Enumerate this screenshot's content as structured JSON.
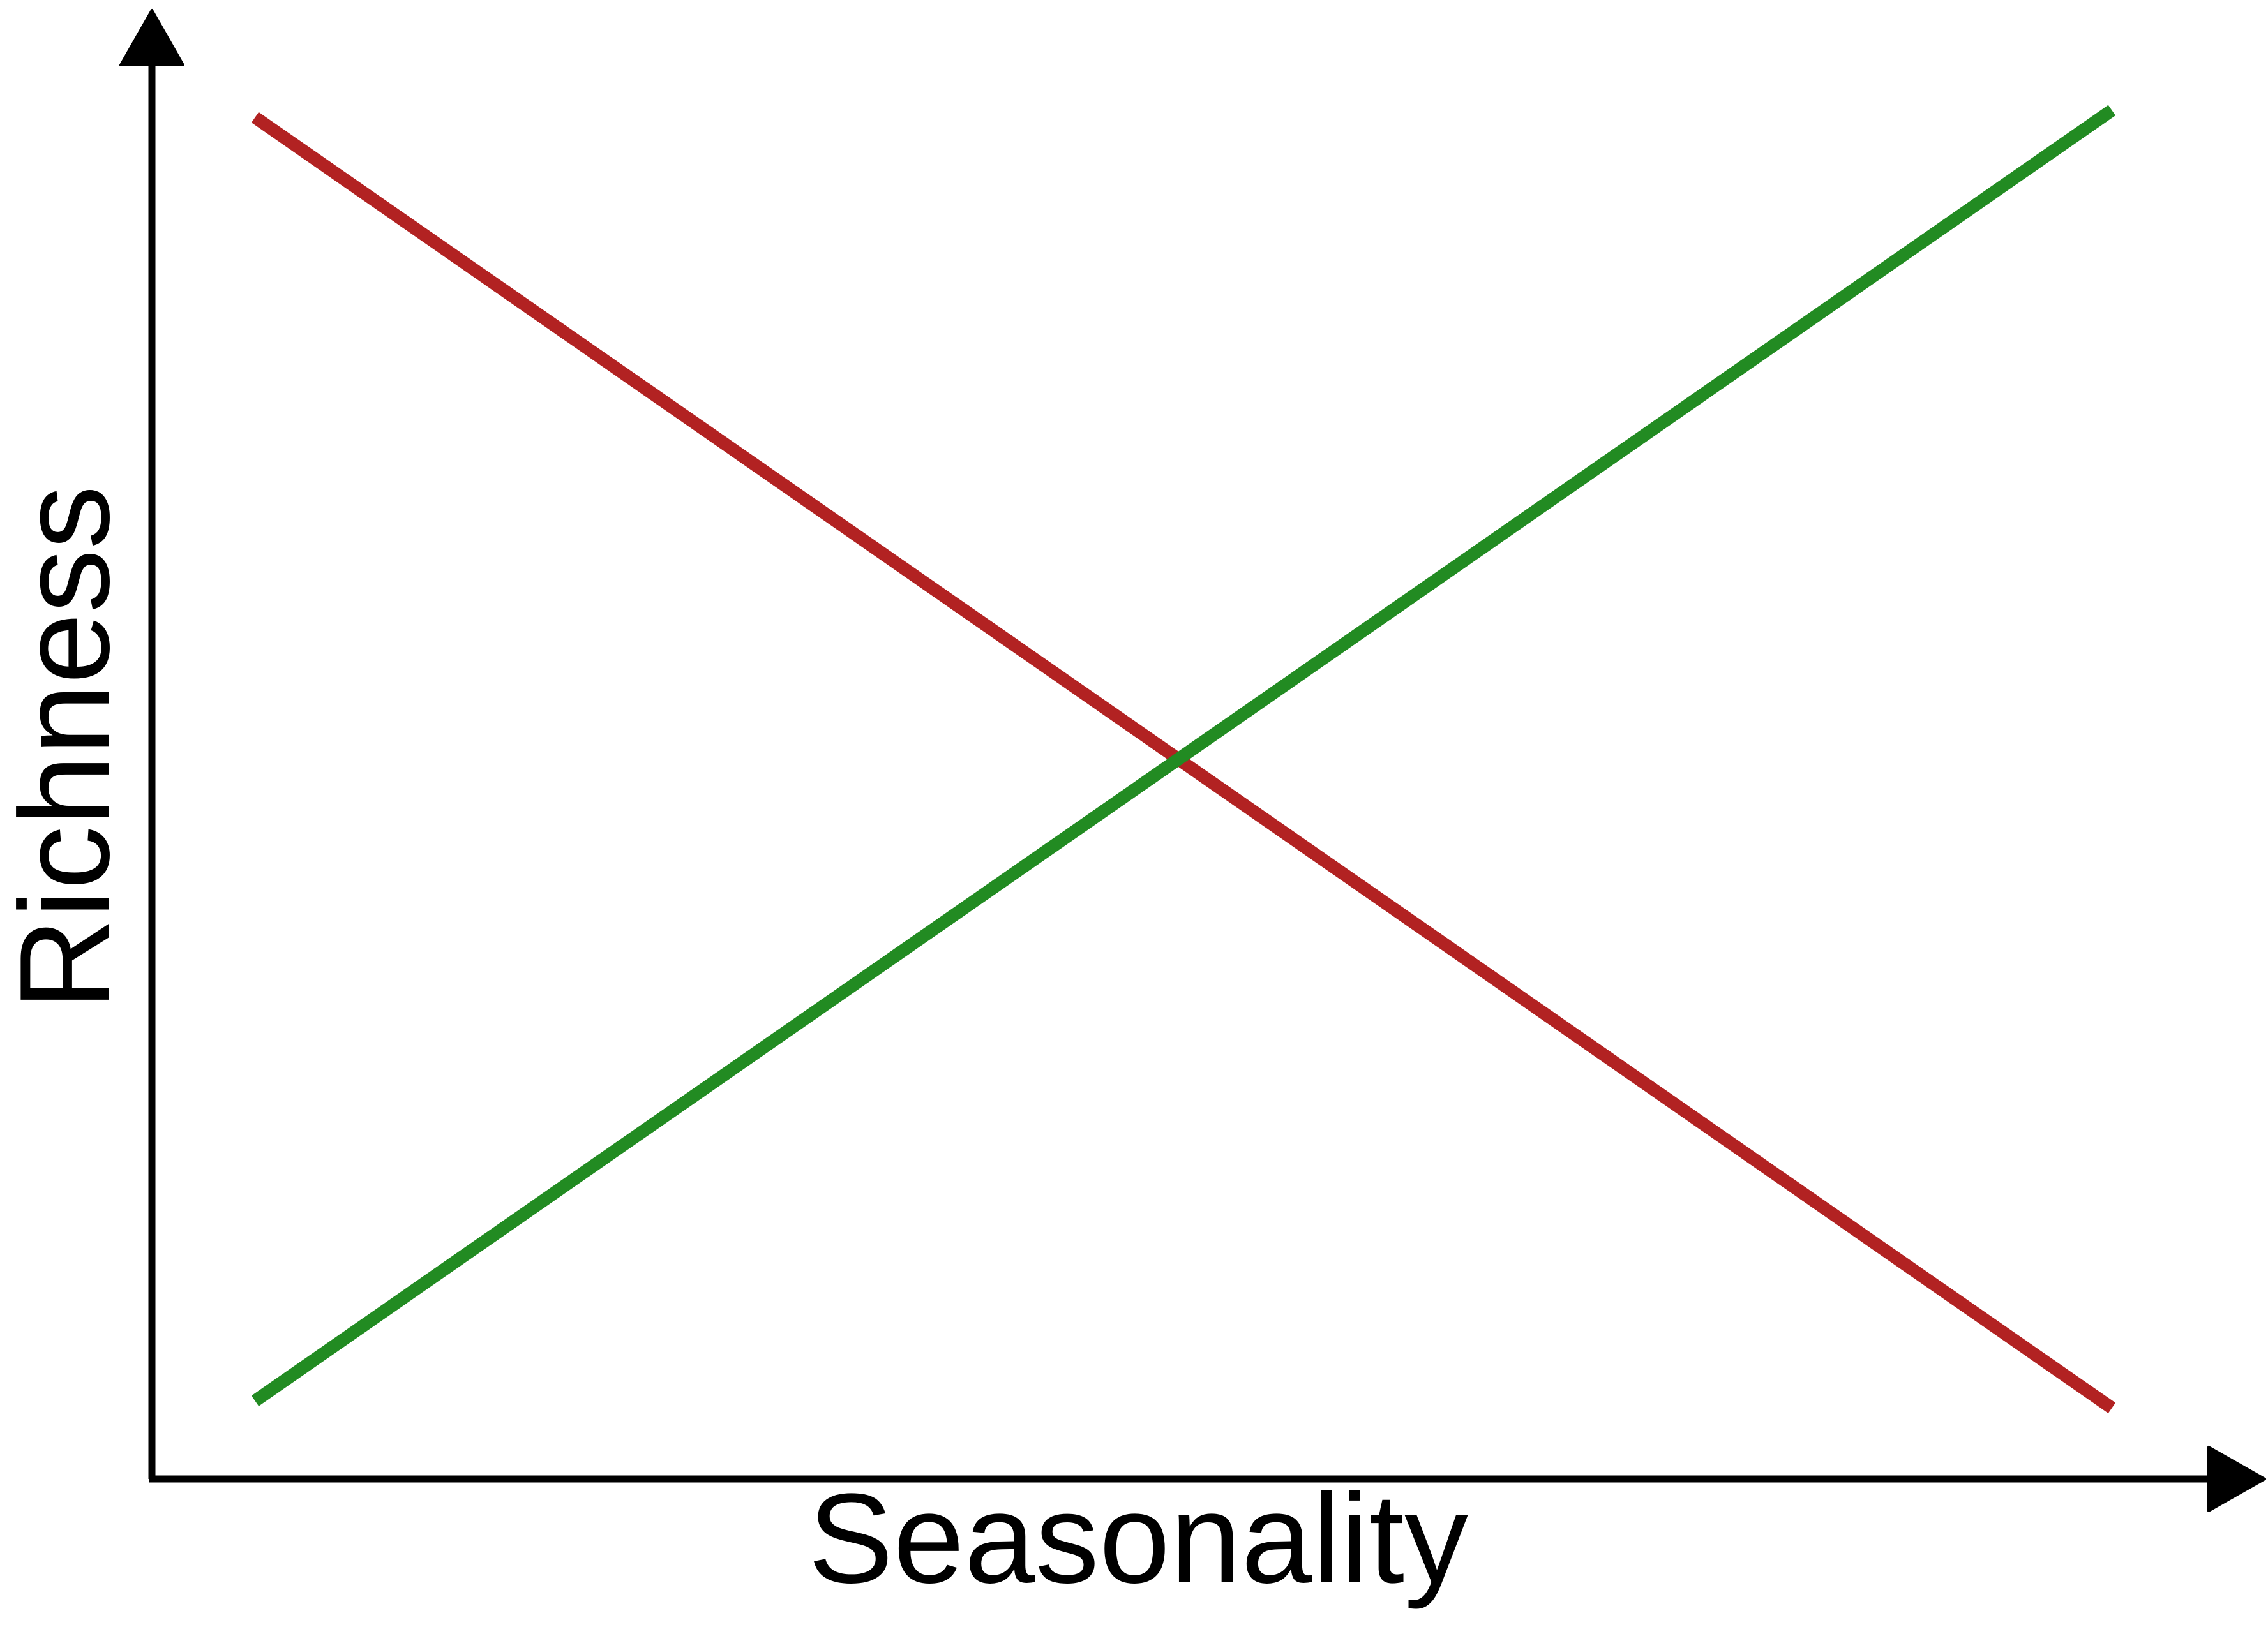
{
  "chart_data": {
    "type": "line",
    "title": "",
    "xlabel": "Seasonality",
    "ylabel": "Richness",
    "grid": false,
    "legend": "none",
    "xlim": [
      0,
      1
    ],
    "ylim": [
      0,
      1
    ],
    "series": [
      {
        "color": "#b22222",
        "x": [
          0.05,
          0.95
        ],
        "y": [
          0.96,
          0.05
        ]
      },
      {
        "color": "#228b22",
        "x": [
          0.05,
          0.95
        ],
        "y": [
          0.055,
          0.965
        ]
      }
    ]
  }
}
